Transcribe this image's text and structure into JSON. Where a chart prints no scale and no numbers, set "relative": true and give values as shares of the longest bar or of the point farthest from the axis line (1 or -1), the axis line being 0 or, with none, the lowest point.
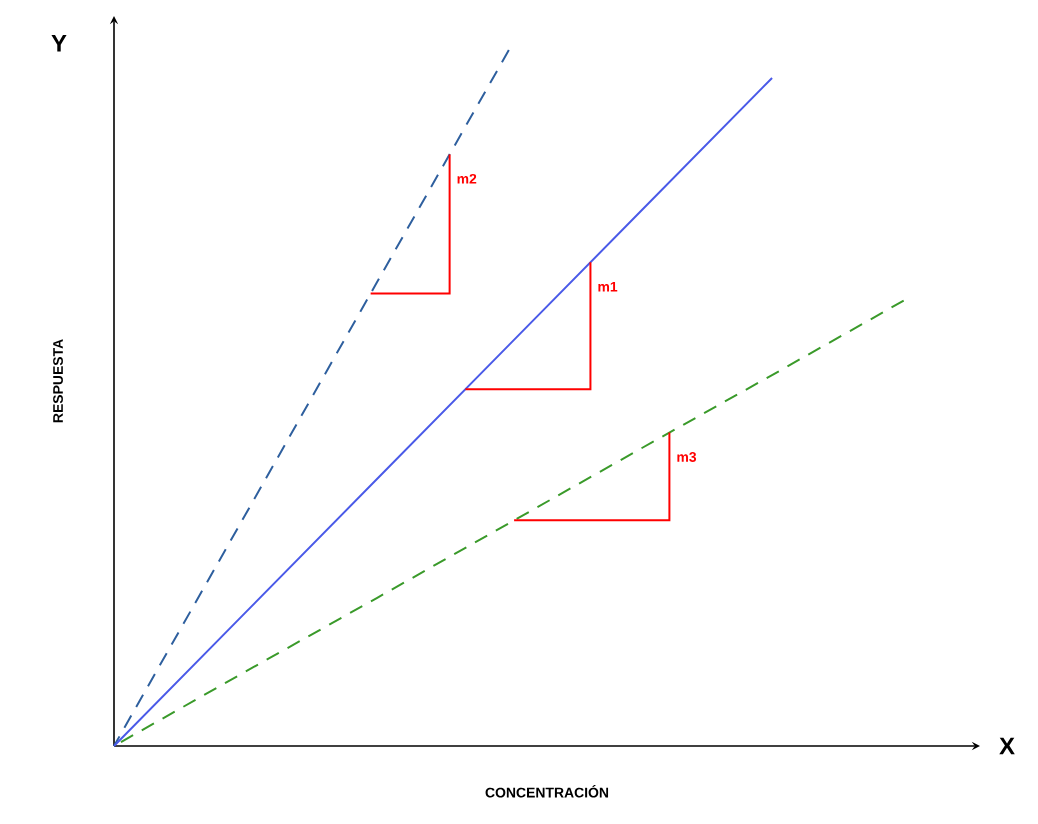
{
  "chart_data": {
    "type": "line",
    "relative": true,
    "xlabel": "CONCENTRACIÓN",
    "ylabel": "RESPUESTA",
    "annotations": [
      "Y",
      "X",
      "m1",
      "m2",
      "m3"
    ],
    "categories": [
      null,
      null,
      null,
      null,
      null,
      null,
      null
    ],
    "series": [
      {
        "color": "#2e5f9e",
        "line_style": "dashed",
        "values": [
          0,
          0.333,
          0.667,
          1,
          null,
          null,
          null
        ]
      },
      {
        "color": "#4a5ae8",
        "line_style": "solid",
        "values": [
          0,
          0.192,
          0.384,
          0.576,
          0.768,
          0.96,
          null
        ]
      },
      {
        "color": "#3a9a2a",
        "line_style": "dashed",
        "values": [
          0,
          0.107,
          0.213,
          0.32,
          0.427,
          0.533,
          0.64
        ]
      }
    ]
  }
}
